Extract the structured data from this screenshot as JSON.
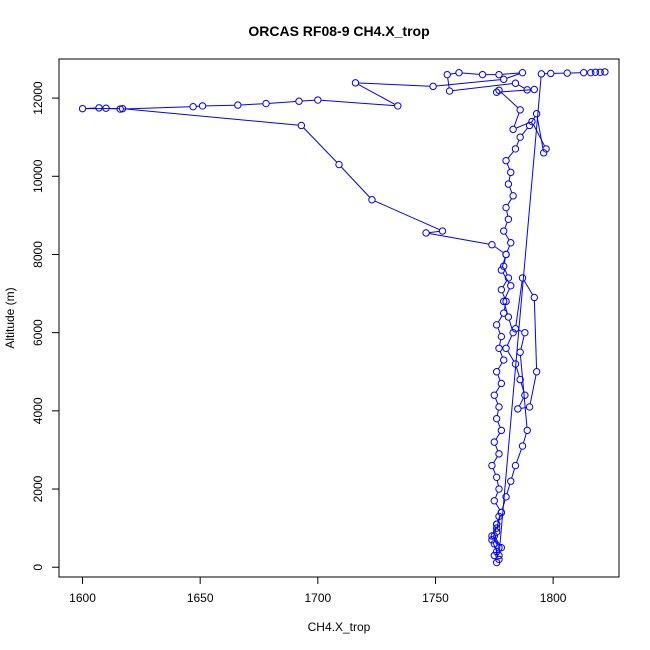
{
  "chart_data": {
    "type": "line",
    "title": "ORCAS RF08-9 CH4.X_trop",
    "xlabel": "CH4.X_trop",
    "ylabel": "Altitude (m)",
    "xlim": [
      1590,
      1828
    ],
    "ylim": [
      -250,
      13000
    ],
    "xticks": [
      "1600",
      "1650",
      "1700",
      "1750",
      "1800"
    ],
    "yticks": [
      "0",
      "2000",
      "4000",
      "6000",
      "8000",
      "10000",
      "12000"
    ],
    "grid": false,
    "legend": "none",
    "marker": "open-circle",
    "color": "#0000ff",
    "series": [
      {
        "x": [
          1776,
          1775,
          1777,
          1774,
          1776,
          1778,
          1775,
          1777,
          1776,
          1774,
          1777,
          1775,
          1778,
          1776,
          1777,
          1775,
          1778,
          1776,
          1779,
          1777,
          1778,
          1776,
          1779,
          1780,
          1778,
          1781,
          1779,
          1780,
          1782,
          1779,
          1781,
          1780,
          1783,
          1781,
          1782,
          1780,
          1784,
          1786,
          1790,
          1793,
          1796,
          1797,
          1791,
          1783,
          1786,
          1777,
          1776,
          1792,
          1789,
          1784,
          1756,
          1755,
          1760,
          1770,
          1777,
          1787,
          1779,
          1749,
          1716,
          1734,
          1700,
          1692,
          1678,
          1666,
          1651,
          1647,
          1616,
          1610,
          1607,
          1600,
          1617,
          1693,
          1709,
          1723,
          1753,
          1746,
          1774,
          1780,
          1778,
          1782,
          1779,
          1781,
          1783,
          1780,
          1784,
          1786,
          1788,
          1785,
          1790,
          1793,
          1792,
          1787,
          1784,
          1788,
          1786,
          1789,
          1787,
          1784,
          1782,
          1780,
          1778,
          1776,
          1774,
          1776,
          1777,
          1775,
          1776,
          1777,
          1776,
          1775,
          1778,
          1777,
          1795,
          1799,
          1806,
          1813,
          1816,
          1818,
          1820,
          1822
        ],
        "y": [
          120,
          300,
          500,
          800,
          1100,
          1400,
          1700,
          2000,
          2300,
          2600,
          2900,
          3200,
          3500,
          3800,
          4100,
          4400,
          4700,
          5000,
          5300,
          5600,
          5900,
          6200,
          6500,
          6800,
          7100,
          7400,
          7700,
          8000,
          8300,
          8600,
          8900,
          9200,
          9500,
          9800,
          10100,
          10400,
          10700,
          11000,
          11300,
          11600,
          10600,
          10700,
          11400,
          11200,
          11700,
          12200,
          12150,
          12220,
          12210,
          12380,
          12180,
          12600,
          12650,
          12600,
          12600,
          12650,
          12480,
          12300,
          12390,
          11800,
          11950,
          11920,
          11860,
          11820,
          11800,
          11780,
          11720,
          11740,
          11750,
          11730,
          11730,
          11300,
          10300,
          9400,
          8600,
          8550,
          8250,
          8000,
          7600,
          7200,
          6800,
          6400,
          6000,
          5600,
          5200,
          4800,
          4400,
          4050,
          4100,
          5000,
          6900,
          7400,
          6100,
          6000,
          5500,
          3500,
          3100,
          2600,
          2200,
          1800,
          1400,
          1000,
          700,
          400,
          200,
          600,
          900,
          1300,
          1100,
          800,
          500,
          300,
          12620,
          12630,
          12640,
          12650,
          12650,
          12660,
          12660,
          12670
        ]
      }
    ]
  }
}
